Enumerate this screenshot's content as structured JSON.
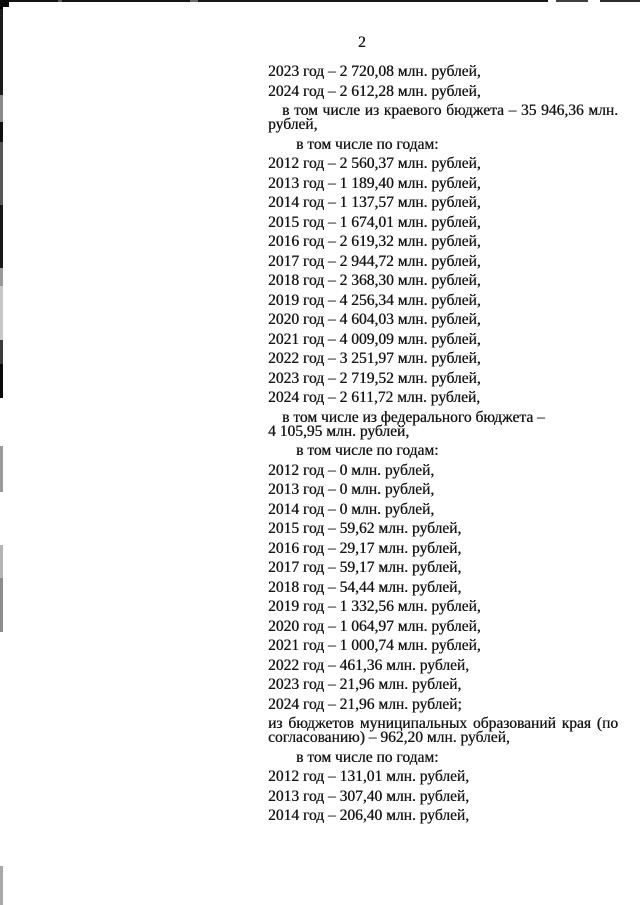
{
  "colors": {
    "background": "#ffffff",
    "text": "#161616",
    "scan_artifact": "#121212"
  },
  "document": {
    "page_number": "2",
    "lines": [
      {
        "role": "year-line",
        "text": "2023 год – 2 720,08 млн. рублей,"
      },
      {
        "role": "year-line",
        "text": "2024 год – 2 612,28 млн. рублей,"
      },
      {
        "role": "para-first-line",
        "text": "в том числе из краевого бюджета – 35 946,36 млн."
      },
      {
        "role": "para-cont-line",
        "text": "рублей,"
      },
      {
        "role": "subheading",
        "text": "в том числе по годам:"
      },
      {
        "role": "year-line",
        "text": "2012 год – 2 560,37 млн. рублей,"
      },
      {
        "role": "year-line",
        "text": "2013 год – 1 189,40 млн. рублей,"
      },
      {
        "role": "year-line",
        "text": "2014 год – 1 137,57 млн. рублей,"
      },
      {
        "role": "year-line",
        "text": "2015 год – 1 674,01 млн. рублей,"
      },
      {
        "role": "year-line",
        "text": "2016 год – 2 619,32 млн. рублей,"
      },
      {
        "role": "year-line",
        "text": "2017 год – 2 944,72 млн. рублей,"
      },
      {
        "role": "year-line",
        "text": "2018 год – 2 368,30 млн. рублей,"
      },
      {
        "role": "year-line",
        "text": "2019 год – 4 256,34 млн. рублей,"
      },
      {
        "role": "year-line",
        "text": "2020 год – 4 604,03 млн. рублей,"
      },
      {
        "role": "year-line",
        "text": "2021 год – 4 009,09 млн. рублей,"
      },
      {
        "role": "year-line",
        "text": "2022 год – 3 251,97 млн. рублей,"
      },
      {
        "role": "year-line",
        "text": "2023 год – 2 719,52 млн. рублей,"
      },
      {
        "role": "year-line",
        "text": "2024 год – 2 611,72 млн. рублей,"
      },
      {
        "role": "para-first-line",
        "text": "в том числе из федерального бюджета –"
      },
      {
        "role": "para-cont-line",
        "text": "4 105,95 млн. рублей,"
      },
      {
        "role": "subheading",
        "text": "в том числе по годам:"
      },
      {
        "role": "year-line",
        "text": "2012 год – 0 млн. рублей,"
      },
      {
        "role": "year-line",
        "text": "2013 год – 0 млн. рублей,"
      },
      {
        "role": "year-line",
        "text": "2014 год – 0 млн. рублей,"
      },
      {
        "role": "year-line",
        "text": "2015 год – 59,62 млн. рублей,"
      },
      {
        "role": "year-line",
        "text": "2016 год – 29,17 млн. рублей,"
      },
      {
        "role": "year-line",
        "text": "2017 год – 59,17 млн. рублей,"
      },
      {
        "role": "year-line",
        "text": "2018 год – 54,44 млн. рублей,"
      },
      {
        "role": "year-line",
        "text": "2019 год – 1 332,56 млн. рублей,"
      },
      {
        "role": "year-line",
        "text": "2020 год – 1 064,97 млн. рублей,"
      },
      {
        "role": "year-line",
        "text": "2021 год – 1 000,74 млн. рублей,"
      },
      {
        "role": "year-line",
        "text": "2022 год – 461,36 млн. рублей,"
      },
      {
        "role": "year-line",
        "text": "2023 год – 21,96 млн. рублей,"
      },
      {
        "role": "year-line",
        "text": "2024 год – 21,96 млн. рублей;"
      },
      {
        "role": "para-first-line",
        "text": "из бюджетов муниципальных образований края (по"
      },
      {
        "role": "para-cont-line",
        "text": "согласованию) – 962,20 млн. рублей,"
      },
      {
        "role": "subheading",
        "text": "в том числе по годам:"
      },
      {
        "role": "year-line",
        "text": "2012 год – 131,01 млн. рублей,"
      },
      {
        "role": "year-line",
        "text": "2013 год – 307,40 млн. рублей,"
      },
      {
        "role": "year-line",
        "text": "2014 год – 206,40 млн. рублей,"
      }
    ]
  }
}
